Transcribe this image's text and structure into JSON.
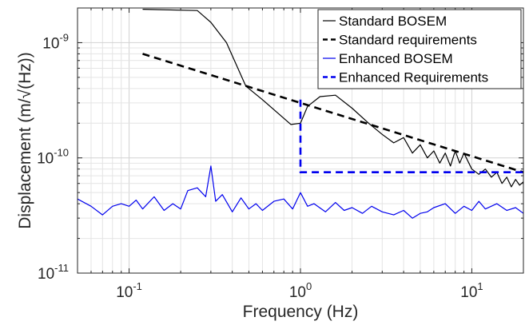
{
  "chart_data": {
    "type": "line",
    "xscale": "log",
    "yscale": "log",
    "xlim": [
      0.05,
      20
    ],
    "ylim": [
      1e-11,
      2e-09
    ],
    "grid": true,
    "minor_grid": true,
    "xlabel": "Frequency (Hz)",
    "ylabel": "Displacement (m/√(Hz))",
    "legend_location": "top-right",
    "x_ticks": [
      {
        "value": 0.1,
        "base": "10",
        "exp": "-1"
      },
      {
        "value": 1,
        "base": "10",
        "exp": "0"
      },
      {
        "value": 10,
        "base": "10",
        "exp": "1"
      }
    ],
    "y_ticks": [
      {
        "value": 1e-11,
        "base": "10",
        "exp": "-11"
      },
      {
        "value": 1e-10,
        "base": "10",
        "exp": "-10"
      },
      {
        "value": 1e-09,
        "base": "10",
        "exp": "-9"
      }
    ],
    "series": [
      {
        "name": "Standard BOSEM",
        "color": "#000000",
        "style": "solid",
        "x": [
          0.12,
          0.25,
          0.3,
          0.37,
          0.48,
          0.6,
          0.75,
          0.88,
          1.0,
          1.1,
          1.3,
          1.6,
          2.0,
          2.5,
          3.0,
          3.5,
          4.0,
          4.5,
          5.0,
          5.5,
          6.0,
          6.5,
          7.0,
          7.5,
          8.0,
          8.5,
          9.0,
          10,
          11,
          12,
          13,
          14,
          15,
          16,
          17,
          18,
          19,
          20
        ],
        "y": [
          1.95e-09,
          1.9e-09,
          1.5e-09,
          1e-09,
          4.2e-10,
          3.2e-10,
          2.4e-10,
          1.95e-10,
          2e-10,
          2.8e-10,
          3.4e-10,
          3.5e-10,
          2.7e-10,
          2e-10,
          1.6e-10,
          1.35e-10,
          1.5e-10,
          1.1e-10,
          1.3e-10,
          1e-10,
          1.15e-10,
          9e-11,
          1.1e-10,
          8.5e-11,
          1.15e-10,
          9e-11,
          1.1e-10,
          8e-11,
          7.2e-11,
          8e-11,
          6.8e-11,
          7.5e-11,
          6e-11,
          6.8e-11,
          5.6e-11,
          6.5e-11,
          5.8e-11,
          6.2e-11
        ]
      },
      {
        "name": "Standard requirements",
        "color": "#000000",
        "style": "dashed",
        "x": [
          0.12,
          20
        ],
        "y": [
          8e-10,
          7.5e-11
        ]
      },
      {
        "name": "Enhanced BOSEM",
        "color": "#0000ee",
        "style": "solid",
        "x": [
          0.05,
          0.06,
          0.07,
          0.08,
          0.09,
          0.1,
          0.11,
          0.12,
          0.14,
          0.16,
          0.18,
          0.2,
          0.22,
          0.25,
          0.28,
          0.3,
          0.32,
          0.35,
          0.4,
          0.45,
          0.5,
          0.55,
          0.6,
          0.7,
          0.8,
          0.9,
          1.0,
          1.1,
          1.2,
          1.4,
          1.6,
          1.8,
          2.0,
          2.3,
          2.6,
          3.0,
          3.5,
          4.0,
          4.5,
          5.0,
          5.5,
          6.0,
          7.0,
          8.0,
          9.0,
          10,
          11,
          12,
          14,
          16,
          18,
          20
        ],
        "y": [
          4.4e-11,
          3.8e-11,
          3.2e-11,
          3.8e-11,
          4e-11,
          3.8e-11,
          4.3e-11,
          3.6e-11,
          4.6e-11,
          3.5e-11,
          4e-11,
          3.6e-11,
          5.2e-11,
          5.5e-11,
          4.6e-11,
          8.5e-11,
          4.2e-11,
          4.8e-11,
          3.4e-11,
          4.5e-11,
          3.6e-11,
          4e-11,
          3.5e-11,
          4.2e-11,
          4.4e-11,
          3.6e-11,
          5e-11,
          3.8e-11,
          4e-11,
          3.4e-11,
          4.1e-11,
          3.5e-11,
          3.7e-11,
          3.3e-11,
          3.8e-11,
          3.4e-11,
          3.2e-11,
          3.5e-11,
          3e-11,
          3.3e-11,
          3.4e-11,
          3.7e-11,
          4e-11,
          3.3e-11,
          3.8e-11,
          3.5e-11,
          4.2e-11,
          3.6e-11,
          4e-11,
          3.5e-11,
          3.7e-11,
          3.3e-11
        ]
      },
      {
        "name": "Enhanced Requirements",
        "color": "#0000ee",
        "style": "dashed",
        "x": [
          1.0,
          1.0,
          20
        ],
        "y": [
          3.2e-10,
          7.5e-11,
          7.5e-11
        ]
      }
    ]
  }
}
